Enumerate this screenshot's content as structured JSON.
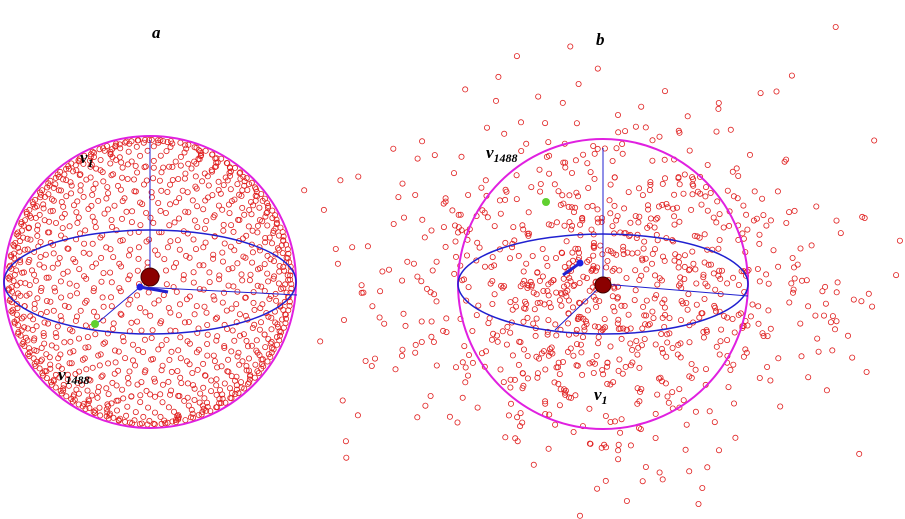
{
  "panels": [
    {
      "label": "a",
      "annotations": [
        {
          "symbol": "v",
          "index": "1"
        },
        {
          "symbol": "v",
          "index": "1488"
        }
      ]
    },
    {
      "label": "b",
      "annotations": [
        {
          "symbol": "v",
          "index": "1488"
        },
        {
          "symbol": "v",
          "index": "1"
        }
      ]
    }
  ]
}
